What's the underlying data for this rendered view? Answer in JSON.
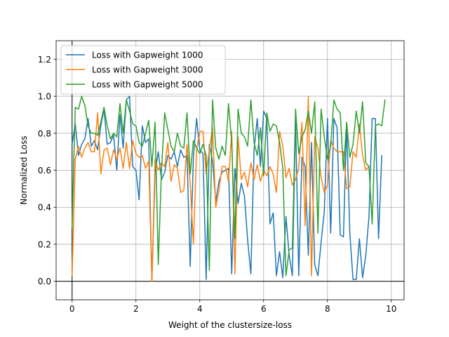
{
  "chart_data": {
    "type": "line",
    "xlabel": "Weight of the clustersize-loss",
    "ylabel": "Normalized Loss",
    "xlim": [
      -0.5,
      10.4
    ],
    "ylim": [
      -0.1,
      1.3
    ],
    "xticks": [
      0,
      2,
      4,
      6,
      8,
      10
    ],
    "yticks": [
      0.0,
      0.2,
      0.4,
      0.6,
      0.8,
      1.0,
      1.2
    ],
    "xtick_labels": [
      "0",
      "2",
      "4",
      "6",
      "8",
      "10"
    ],
    "ytick_labels": [
      "0.0",
      "0.2",
      "0.4",
      "0.6",
      "0.8",
      "1.0",
      "1.2"
    ],
    "grid": true,
    "legend_position": "top-left",
    "x_start": 0,
    "x_step": 0.1,
    "series": [
      {
        "name": "Loss with Gapweight 1000",
        "color": "#1f77b4",
        "values": [
          0.74,
          0.85,
          0.68,
          0.74,
          0.77,
          0.88,
          0.73,
          0.76,
          0.71,
          0.84,
          0.93,
          0.74,
          0.75,
          0.79,
          0.6,
          0.9,
          0.72,
          0.98,
          1.0,
          0.62,
          0.6,
          0.44,
          0.84,
          0.75,
          0.77,
          0.0,
          0.59,
          0.7,
          0.55,
          0.59,
          0.68,
          0.66,
          0.7,
          0.62,
          0.71,
          0.67,
          0.68,
          0.08,
          0.67,
          0.88,
          0.71,
          0.69,
          0.01,
          0.74,
          0.65,
          0.43,
          0.54,
          0.59,
          0.6,
          0.61,
          0.04,
          0.61,
          0.42,
          0.53,
          0.46,
          0.22,
          0.04,
          0.71,
          0.88,
          0.62,
          0.92,
          0.88,
          0.31,
          0.37,
          0.03,
          0.16,
          0.02,
          0.35,
          0.14,
          0.03,
          0.88,
          0.03,
          0.67,
          0.62,
          0.14,
          0.75,
          0.09,
          0.03,
          0.21,
          0.38,
          0.88,
          0.26,
          0.88,
          0.83,
          0.25,
          0.24,
          0.85,
          0.26,
          0.01,
          0.01,
          0.23,
          0.02,
          0.14,
          0.35,
          0.88,
          0.88,
          0.23,
          0.68
        ]
      },
      {
        "name": "Loss with Gapweight 3000",
        "color": "#ff7f0e",
        "values": [
          0.03,
          0.66,
          0.73,
          0.67,
          0.72,
          0.75,
          0.7,
          0.7,
          0.91,
          0.58,
          0.71,
          0.72,
          0.63,
          0.71,
          0.66,
          0.72,
          0.61,
          0.75,
          0.61,
          0.76,
          0.69,
          0.67,
          0.68,
          0.61,
          0.65,
          0.0,
          0.66,
          0.6,
          0.64,
          0.62,
          0.75,
          0.54,
          0.63,
          0.61,
          0.48,
          0.49,
          0.74,
          0.53,
          0.2,
          0.71,
          0.81,
          0.81,
          0.58,
          0.71,
          0.83,
          0.4,
          0.49,
          0.62,
          0.62,
          0.54,
          0.81,
          0.04,
          0.78,
          0.55,
          0.59,
          0.51,
          0.64,
          0.55,
          0.63,
          0.54,
          0.6,
          0.57,
          0.62,
          0.58,
          0.48,
          0.81,
          0.73,
          0.56,
          0.61,
          0.52,
          0.55,
          0.61,
          0.86,
          0.3,
          1.0,
          0.03,
          0.78,
          0.72,
          0.56,
          0.48,
          0.52,
          0.76,
          0.72,
          0.7,
          0.7,
          0.7,
          0.5,
          0.51,
          0.7,
          0.67,
          0.85,
          0.68,
          0.6,
          0.62
        ]
      },
      {
        "name": "Loss with Gapweight 5000",
        "color": "#2ca02c",
        "values": [
          0.29,
          0.94,
          0.93,
          1.0,
          0.95,
          0.84,
          0.8,
          0.8,
          0.79,
          0.86,
          0.94,
          0.84,
          0.77,
          0.8,
          0.78,
          0.96,
          0.8,
          0.98,
          0.92,
          0.85,
          0.84,
          0.75,
          0.73,
          0.8,
          0.87,
          0.62,
          0.86,
          0.09,
          0.6,
          0.91,
          0.82,
          0.73,
          0.7,
          0.8,
          0.73,
          0.72,
          0.91,
          0.58,
          0.76,
          0.72,
          0.69,
          0.74,
          0.68,
          0.06,
          0.98,
          0.72,
          0.66,
          0.73,
          0.68,
          0.96,
          0.75,
          0.23,
          0.93,
          0.8,
          0.78,
          0.73,
          0.98,
          0.75,
          0.68,
          0.83,
          0.57,
          0.91,
          0.81,
          0.85,
          0.84,
          0.75,
          0.61,
          0.03,
          0.17,
          0.18,
          0.93,
          0.69,
          0.78,
          0.82,
          0.92,
          0.8,
          0.97,
          0.26,
          0.93,
          0.78,
          0.66,
          0.73,
          0.98,
          0.93,
          0.91,
          0.6,
          0.86,
          0.67,
          0.74,
          0.92,
          0.8,
          0.97,
          0.64,
          0.62,
          0.31,
          0.84,
          0.85,
          0.84,
          0.98
        ]
      }
    ]
  }
}
